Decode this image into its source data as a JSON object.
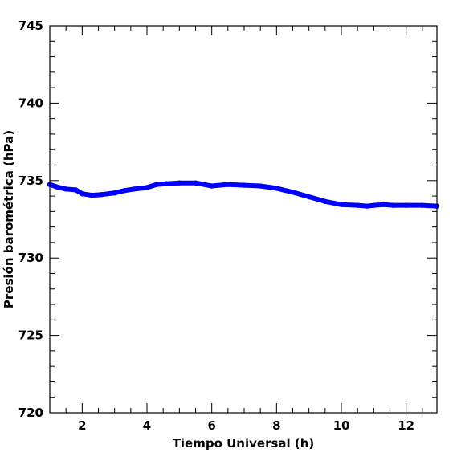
{
  "chart_data": {
    "type": "line",
    "xlabel": "Tiempo Universal (h)",
    "ylabel": "Presión barométrica (hPa)",
    "xlim": [
      1.0,
      12.95
    ],
    "ylim": [
      720,
      745
    ],
    "x_ticks": [
      2,
      4,
      6,
      8,
      10,
      12
    ],
    "x_tick_labels": [
      "2",
      "4",
      "6",
      "8",
      "10",
      "12"
    ],
    "y_ticks": [
      720,
      725,
      730,
      735,
      740,
      745
    ],
    "y_tick_labels": [
      "720",
      "725",
      "730",
      "735",
      "740",
      "745"
    ],
    "grid": false,
    "legend": "none",
    "series": [
      {
        "color": "#0000ff",
        "x": [
          1.0,
          1.2,
          1.5,
          1.8,
          2.0,
          2.3,
          2.6,
          3.0,
          3.3,
          3.6,
          4.0,
          4.3,
          4.6,
          5.0,
          5.5,
          6.0,
          6.5,
          7.0,
          7.5,
          8.0,
          8.5,
          9.0,
          9.5,
          10.0,
          10.5,
          10.8,
          11.0,
          11.3,
          11.6,
          12.0,
          12.5,
          12.95
        ],
        "y": [
          734.75,
          734.6,
          734.45,
          734.4,
          734.15,
          734.05,
          734.1,
          734.2,
          734.35,
          734.45,
          734.55,
          734.75,
          734.8,
          734.85,
          734.85,
          734.65,
          734.75,
          734.7,
          734.65,
          734.5,
          734.25,
          733.95,
          733.65,
          733.45,
          733.4,
          733.35,
          733.4,
          733.45,
          733.4,
          733.4,
          733.4,
          733.35
        ]
      }
    ]
  }
}
